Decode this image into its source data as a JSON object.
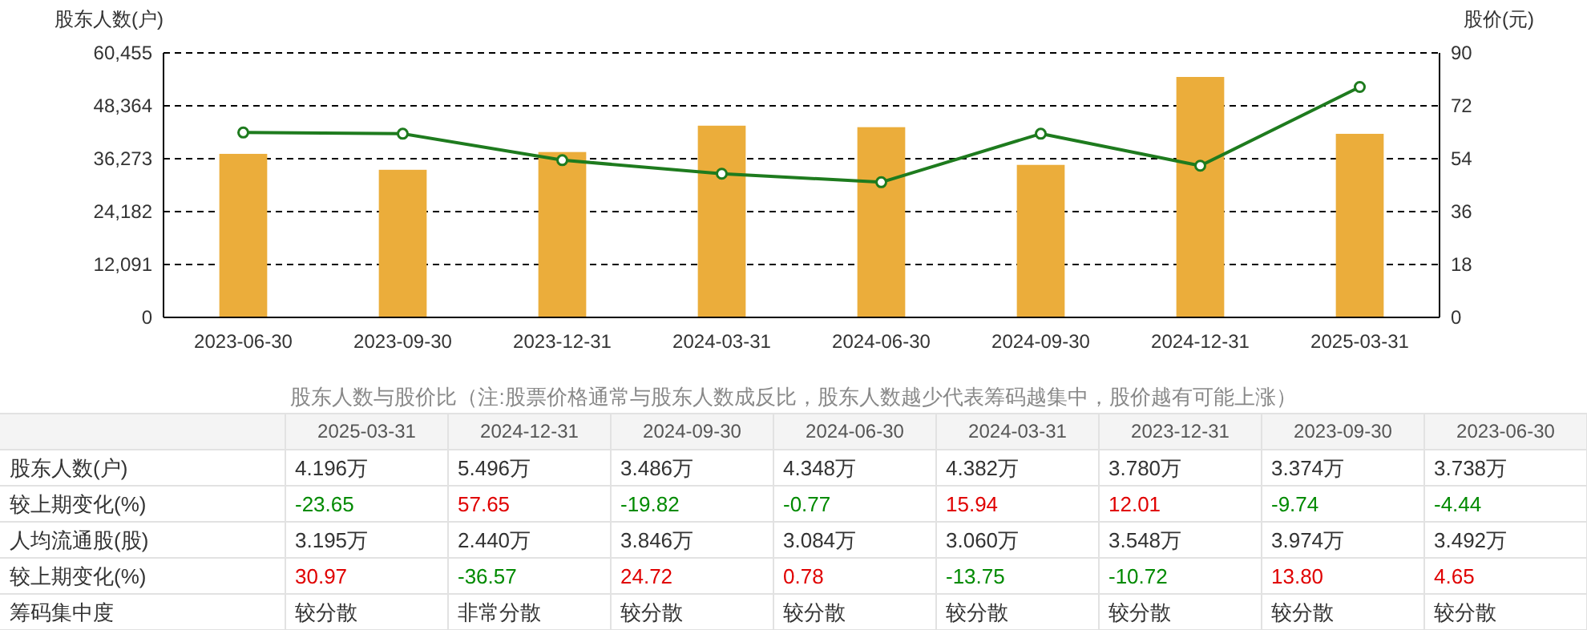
{
  "chart_data": [
    {
      "type": "bar",
      "categories": [
        "2023-06-30",
        "2023-09-30",
        "2023-12-31",
        "2024-03-31",
        "2024-06-30",
        "2024-09-30",
        "2024-12-31",
        "2025-03-31"
      ],
      "series": [
        {
          "type": "bar",
          "color": "#ebad3b",
          "values": [
            37380,
            33740,
            37800,
            43820,
            43480,
            34860,
            54960,
            41960
          ]
        },
        {
          "type": "line",
          "axis": "y2",
          "color": "#1e7b1e",
          "marker": "circle",
          "line_style": "solid",
          "values": [
            62.9,
            62.5,
            53.5,
            48.9,
            46.0,
            62.5,
            51.6,
            78.4
          ]
        }
      ],
      "ylabel": "股东人数(户)",
      "y2label": "股价(元)",
      "ylim": [
        0,
        60455
      ],
      "yticks": [
        0,
        {
          "value": 12091,
          "label": "12,091"
        },
        {
          "value": 24182,
          "label": "24,182"
        },
        {
          "value": 36273,
          "label": "36,273"
        },
        {
          "value": 48364,
          "label": "48,364"
        },
        {
          "value": 60455,
          "label": "60,455"
        }
      ],
      "y2lim": [
        0,
        90
      ],
      "y2ticks": [
        0,
        18,
        36,
        54,
        72,
        90
      ],
      "grid": "y"
    },
    {
      "type": "other",
      "title": "股东人数与股价比（注:股票价格通常与股东人数成反比，股东人数越少代表筹码越集中，股价越有可能上涨）",
      "categories": [
        "2025-03-31",
        "2024-12-31",
        "2024-09-30",
        "2024-06-30",
        "2024-03-31",
        "2023-12-31",
        "2023-09-30",
        "2023-06-30"
      ],
      "y_categories": [
        "股东人数(户)",
        "较上期变化(%)",
        "人均流通股(股)",
        "较上期变化(%)",
        "筹码集中度"
      ],
      "cell_labels": [
        [
          "4.196万",
          "5.496万",
          "3.486万",
          "4.348万",
          "4.382万",
          "3.780万",
          "3.374万",
          "3.738万"
        ],
        [
          "-23.65",
          "57.65",
          "-19.82",
          "-0.77",
          "15.94",
          "12.01",
          "-9.74",
          "-4.44"
        ],
        [
          "3.195万",
          "2.440万",
          "3.846万",
          "3.084万",
          "3.060万",
          "3.548万",
          "3.974万",
          "3.492万"
        ],
        [
          "30.97",
          "-36.57",
          "24.72",
          "0.78",
          "-13.75",
          "-10.72",
          "13.80",
          "4.65"
        ],
        [
          "较分散",
          "非常分散",
          "较分散",
          "较分散",
          "较分散",
          "较分散",
          "较分散",
          "较分散"
        ]
      ]
    }
  ]
}
